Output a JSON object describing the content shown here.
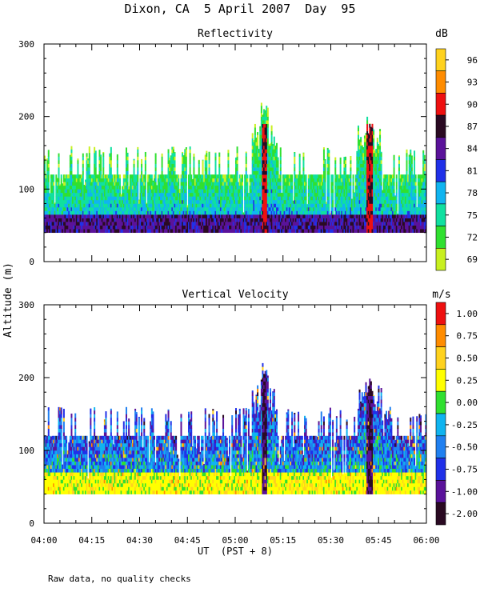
{
  "title": "Dixon, CA  5 April 2007  Day  95",
  "ylabel": "Altitude (m)",
  "xlabel": "UT  (PST + 8)",
  "footnote": "Raw data, no quality checks",
  "colors": {
    "background": "#ffffff",
    "axis": "#000000"
  },
  "chart_data": [
    {
      "type": "heatmap",
      "title": "Reflectivity",
      "units": "dB",
      "x_range": [
        "04:00",
        "06:00"
      ],
      "x_ticks": [
        "04:00",
        "04:15",
        "04:30",
        "04:45",
        "05:00",
        "05:15",
        "05:30",
        "05:45",
        "06:00"
      ],
      "ylim": [
        0,
        300
      ],
      "y_ticks": [
        0,
        100,
        200,
        300
      ],
      "colorbar": {
        "labels": [
          "96",
          "93",
          "90",
          "87",
          "84",
          "81",
          "78",
          "75",
          "72",
          "69"
        ],
        "colors": [
          "#ffd21e",
          "#ff8c00",
          "#ee1010",
          "#2a0a22",
          "#5a129a",
          "#2030e8",
          "#10b4f0",
          "#10e0a0",
          "#30e030",
          "#c8f020"
        ]
      },
      "data_floor_m": 40,
      "typical_top_m": 120,
      "events": [
        {
          "time": "05:09",
          "max_altitude_m": 220
        },
        {
          "time": "05:42",
          "max_altitude_m": 200
        }
      ]
    },
    {
      "type": "heatmap",
      "title": "Vertical Velocity",
      "units": "m/s",
      "x_range": [
        "04:00",
        "06:00"
      ],
      "x_ticks": [
        "04:00",
        "04:15",
        "04:30",
        "04:45",
        "05:00",
        "05:15",
        "05:30",
        "05:45",
        "06:00"
      ],
      "ylim": [
        0,
        300
      ],
      "y_ticks": [
        0,
        100,
        200,
        300
      ],
      "colorbar": {
        "labels": [
          "1.00",
          "0.75",
          "0.50",
          "0.25",
          "0.00",
          "-0.25",
          "-0.50",
          "-0.75",
          "-1.00",
          "-2.00"
        ],
        "colors": [
          "#ee1010",
          "#ff8c00",
          "#ffd21e",
          "#ffff00",
          "#30e030",
          "#10b4f0",
          "#2080f0",
          "#2030e8",
          "#5a129a",
          "#2a0a22"
        ]
      },
      "data_floor_m": 40,
      "typical_top_m": 120,
      "events": [
        {
          "time": "05:09",
          "max_altitude_m": 220
        },
        {
          "time": "05:42",
          "max_altitude_m": 200
        }
      ]
    }
  ]
}
